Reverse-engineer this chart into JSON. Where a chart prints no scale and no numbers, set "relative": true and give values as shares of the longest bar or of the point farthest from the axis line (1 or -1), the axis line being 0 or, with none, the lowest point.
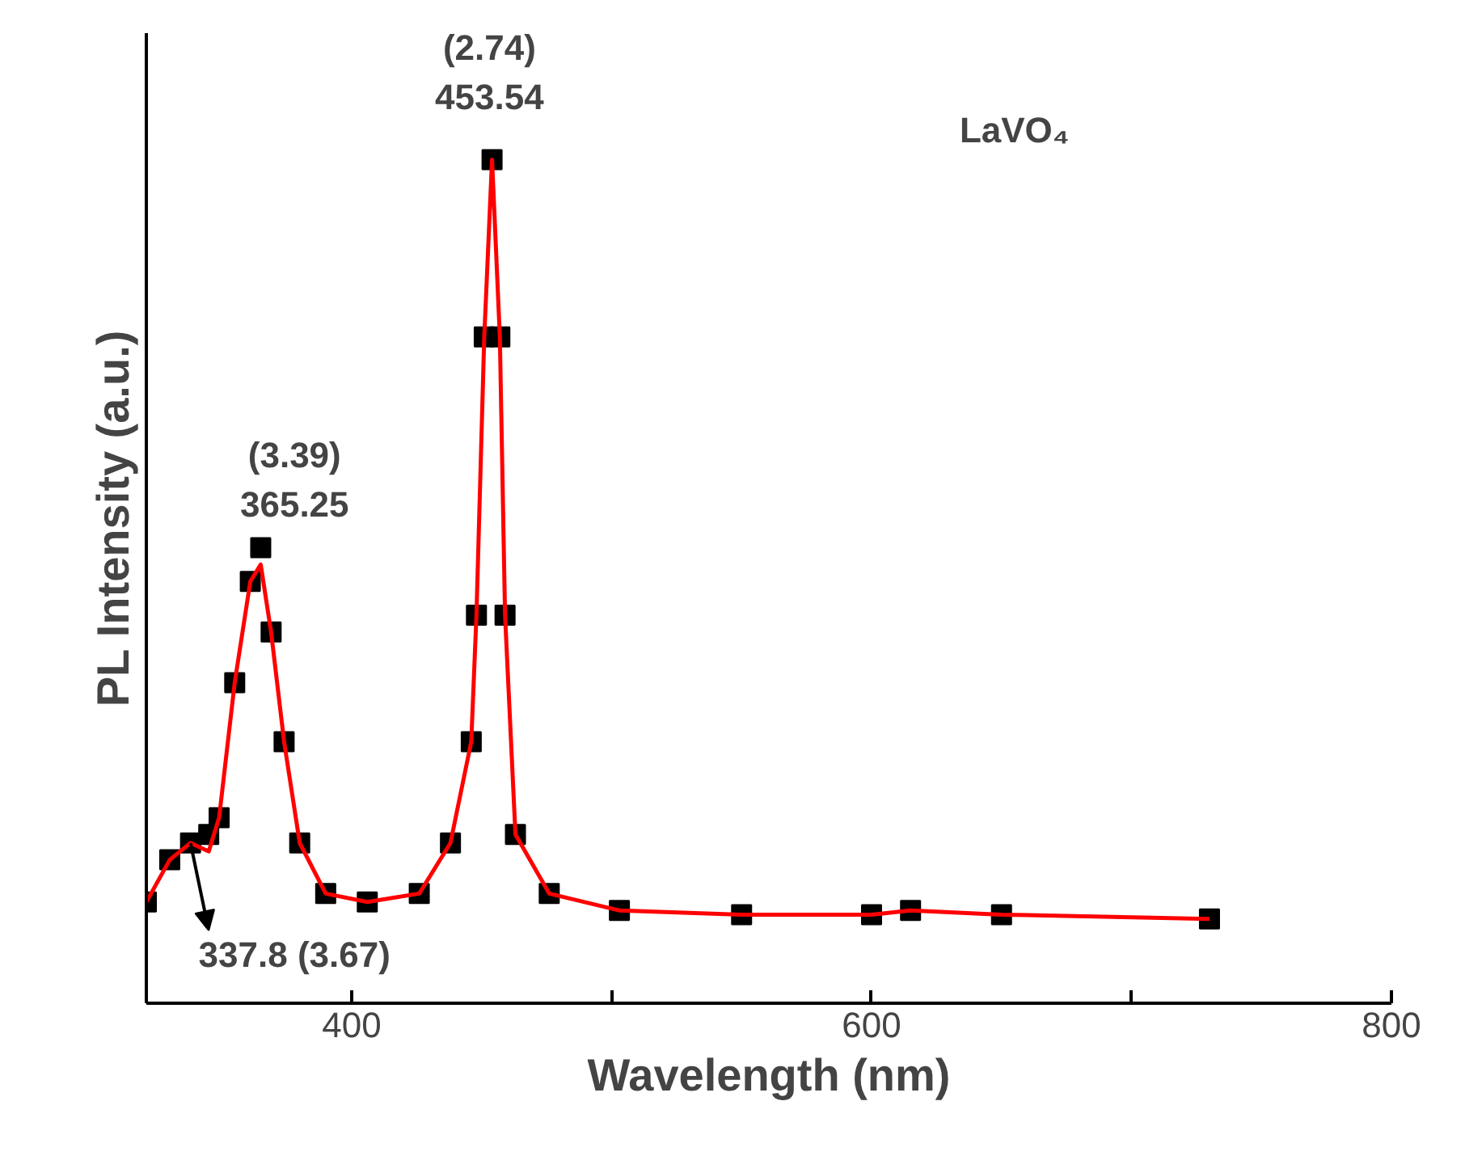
{
  "chart_data": {
    "type": "line",
    "xlabel": "Wavelength (nm)",
    "ylabel": "PL Intensity (a.u.)",
    "relative": true,
    "xlim": [
      321,
      800
    ],
    "xticks": [
      400,
      {
        "value": 500,
        "label": null
      },
      600,
      {
        "value": 700,
        "label": null
      },
      800
    ],
    "grid": false,
    "x": [
      321,
      330,
      338,
      345,
      349,
      355,
      361,
      365,
      369,
      374,
      380,
      390,
      406,
      426,
      438,
      446,
      448,
      451,
      454,
      457,
      459,
      463,
      476,
      503,
      550,
      600,
      615,
      650,
      730
    ],
    "series": [
      {
        "type": "scatter",
        "marker": "square",
        "color": "#000000",
        "values": [
          0.12,
          0.17,
          0.19,
          0.2,
          0.22,
          0.38,
          0.5,
          0.54,
          0.44,
          0.31,
          0.19,
          0.13,
          0.12,
          0.13,
          0.19,
          0.31,
          0.46,
          0.79,
          1.0,
          0.79,
          0.46,
          0.2,
          0.13,
          0.11,
          0.105,
          0.105,
          0.11,
          0.105,
          0.1
        ]
      },
      {
        "type": "line",
        "color": "#ff0000",
        "values": [
          0.12,
          0.17,
          0.19,
          0.18,
          0.22,
          0.38,
          0.5,
          0.52,
          0.44,
          0.31,
          0.19,
          0.13,
          0.12,
          0.13,
          0.19,
          0.31,
          0.46,
          0.79,
          1.0,
          0.79,
          0.46,
          0.2,
          0.13,
          0.11,
          0.105,
          0.105,
          0.11,
          0.105,
          0.1
        ]
      }
    ],
    "annotations": [
      "(3.39)",
      "365.25",
      "(2.74)",
      "453.54",
      "337.8 (3.67)",
      "LaVO₄"
    ]
  }
}
